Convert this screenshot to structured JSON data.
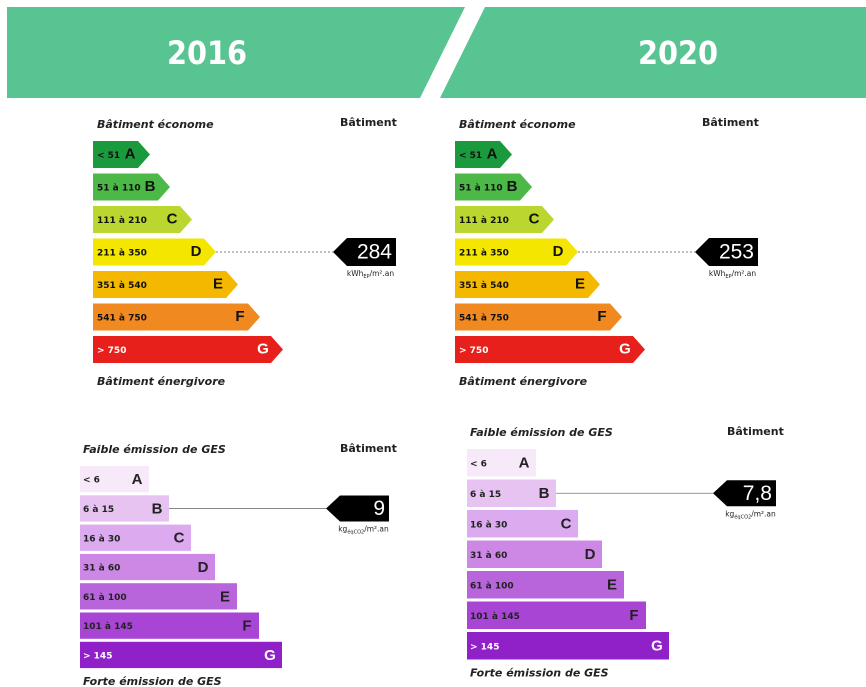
{
  "panels": [
    {
      "year": "2016",
      "energy": {
        "top": "Bâtiment économe",
        "column": "Bâtiment",
        "bottom": "Bâtiment énergivore",
        "classes": [
          {
            "range": "< 51",
            "letter": "A"
          },
          {
            "range": "51 à 110",
            "letter": "B"
          },
          {
            "range": "111 à 210",
            "letter": "C"
          },
          {
            "range": "211 à 350",
            "letter": "D"
          },
          {
            "range": "351 à 540",
            "letter": "E"
          },
          {
            "range": "541 à 750",
            "letter": "F"
          },
          {
            "range": "> 750",
            "letter": "G"
          }
        ],
        "value": "284",
        "unit_main": "kWh",
        "unit_sub": "EP",
        "unit_tail": "/m².an"
      },
      "ges": {
        "top": "Faible émission de GES",
        "column": "Bâtiment",
        "bottom": "Forte émission de GES",
        "classes": [
          {
            "range": "< 6",
            "letter": "A"
          },
          {
            "range": "6 à 15",
            "letter": "B"
          },
          {
            "range": "16 à 30",
            "letter": "C"
          },
          {
            "range": "31 à 60",
            "letter": "D"
          },
          {
            "range": "61 à 100",
            "letter": "E"
          },
          {
            "range": "101 à 145",
            "letter": "F"
          },
          {
            "range": "> 145",
            "letter": "G"
          }
        ],
        "value": "9",
        "unit_main": "kg",
        "unit_sub": "éqCO2",
        "unit_tail": "/m².an"
      }
    },
    {
      "year": "2020",
      "energy": {
        "top": "Bâtiment économe",
        "column": "Bâtiment",
        "bottom": "Bâtiment énergivore",
        "classes": [
          {
            "range": "< 51",
            "letter": "A"
          },
          {
            "range": "51 à 110",
            "letter": "B"
          },
          {
            "range": "111 à 210",
            "letter": "C"
          },
          {
            "range": "211 à 350",
            "letter": "D"
          },
          {
            "range": "351 à 540",
            "letter": "E"
          },
          {
            "range": "541 à 750",
            "letter": "F"
          },
          {
            "range": "> 750",
            "letter": "G"
          }
        ],
        "value": "253",
        "unit_main": "kWh",
        "unit_sub": "EP",
        "unit_tail": "/m².an"
      },
      "ges": {
        "top": "Faible émission de GES",
        "column": "Bâtiment",
        "bottom": "Forte émission de GES",
        "classes": [
          {
            "range": "< 6",
            "letter": "A"
          },
          {
            "range": "6 à 15",
            "letter": "B"
          },
          {
            "range": "16 à 30",
            "letter": "C"
          },
          {
            "range": "31 à 60",
            "letter": "D"
          },
          {
            "range": "61 à 100",
            "letter": "E"
          },
          {
            "range": "101 à 145",
            "letter": "F"
          },
          {
            "range": "> 145",
            "letter": "G"
          }
        ],
        "value": "7,8",
        "unit_main": "kg",
        "unit_sub": "éqCO2",
        "unit_tail": "/m².an"
      }
    }
  ]
}
